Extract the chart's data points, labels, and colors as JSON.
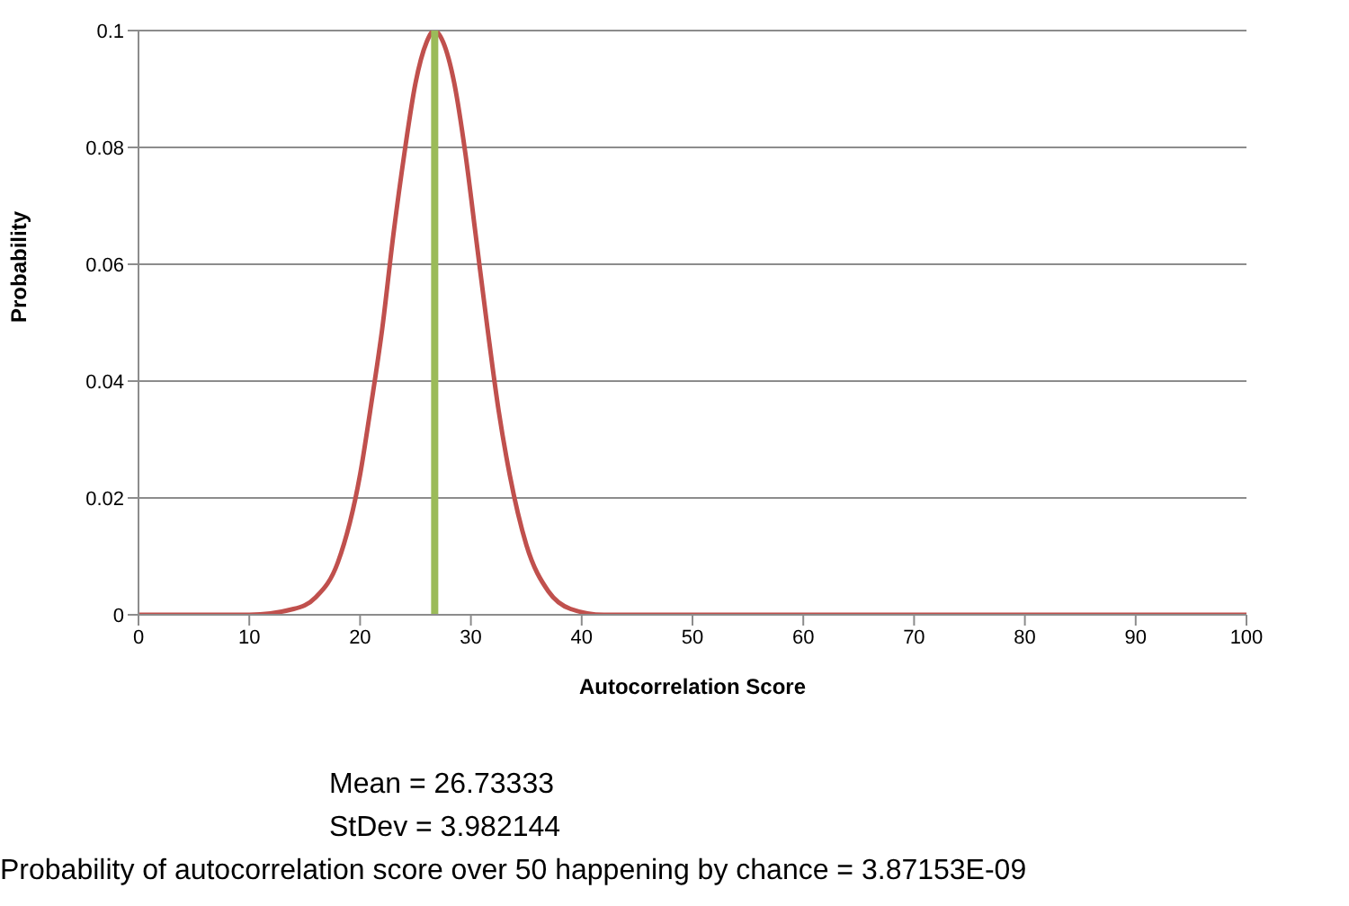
{
  "chart_data": {
    "type": "line",
    "xlabel": "Autocorrelation Score",
    "ylabel": "Probability",
    "x": [
      0,
      5,
      10,
      14,
      16,
      18,
      20,
      21,
      22,
      23,
      24,
      25,
      26,
      26.7,
      27.5,
      28.5,
      29.5,
      30.5,
      31.5,
      32.5,
      33.5,
      35,
      37,
      39,
      42,
      50,
      60,
      70,
      80,
      90,
      100
    ],
    "series": [
      {
        "color": "#c0504d",
        "values": [
          0,
          0,
          0,
          0.001,
          0.003,
          0.009,
          0.024,
          0.036,
          0.049,
          0.065,
          0.079,
          0.091,
          0.098,
          0.1,
          0.098,
          0.091,
          0.079,
          0.064,
          0.049,
          0.035,
          0.024,
          0.012,
          0.004,
          0.001,
          0,
          0,
          0,
          0,
          0,
          0,
          0
        ]
      }
    ],
    "xlim": [
      0,
      100
    ],
    "xticks": [
      0,
      10,
      20,
      30,
      40,
      50,
      60,
      70,
      80,
      90,
      100
    ],
    "ylim": [
      0,
      0.1
    ],
    "yticks": [
      0,
      0.02,
      0.04,
      0.06,
      0.08,
      0.1
    ],
    "grid": "y",
    "marker": "none",
    "line_style": "solid",
    "ref_lines": [
      {
        "axis": "x",
        "value": 26.73333,
        "color": "#9bbb59"
      }
    ],
    "annotations": [
      "Mean = 26.73333",
      "StDev = 3.982144",
      "Probability of autocorrelation  score over 50  happening by chance = 3.87153E-09"
    ]
  }
}
